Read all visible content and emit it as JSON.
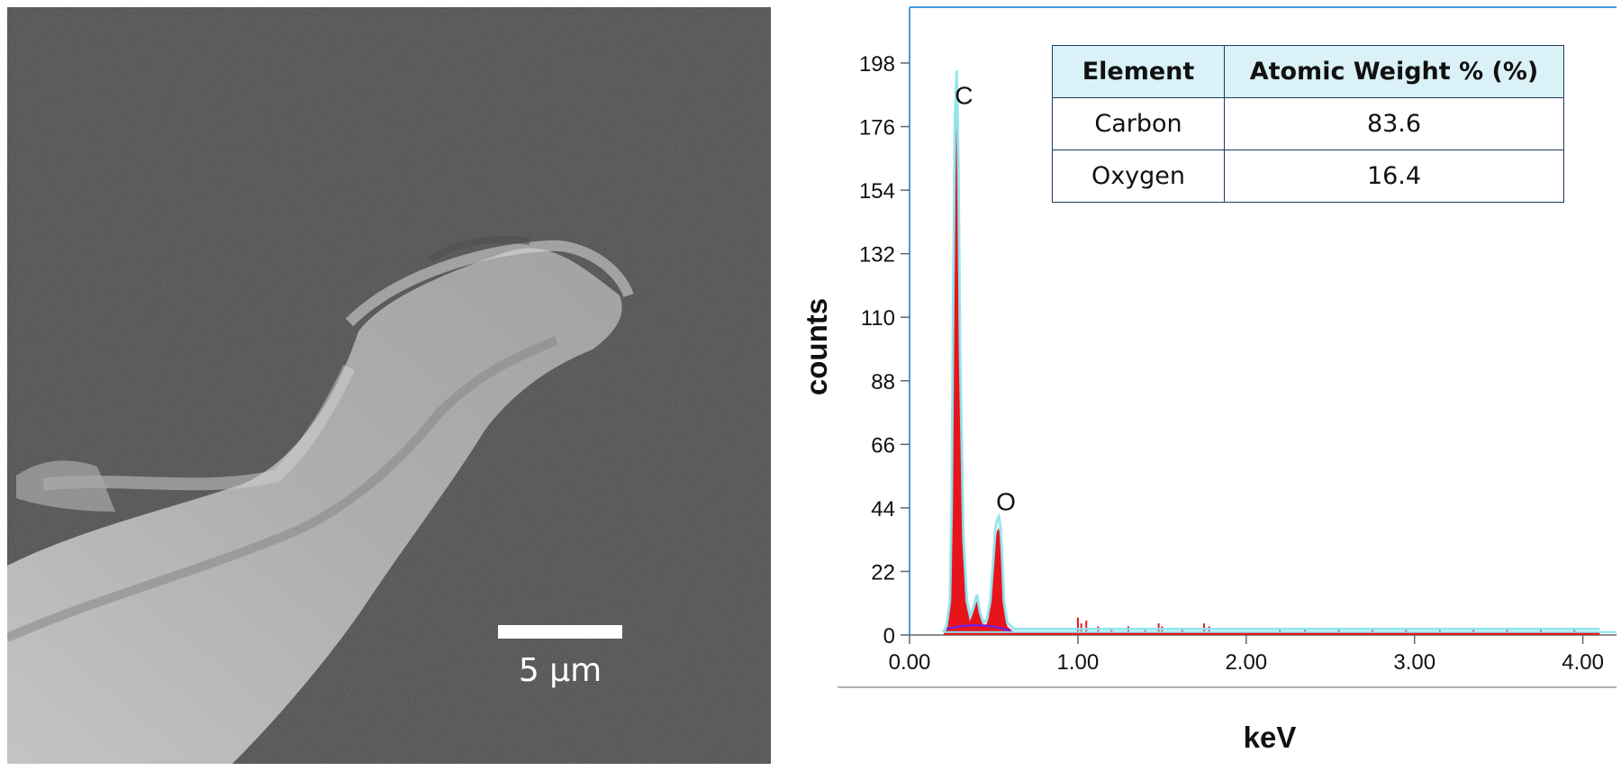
{
  "micrograph": {
    "scale_bar_label": "5 µm"
  },
  "table": {
    "headers": [
      "Element",
      "Atomic Weight % (%)"
    ],
    "rows": [
      [
        "Carbon",
        "83.6"
      ],
      [
        "Oxygen",
        "16.4"
      ]
    ]
  },
  "chart_data": {
    "type": "area",
    "title": "",
    "xlabel": "keV",
    "ylabel": "counts",
    "xlim": [
      0.0,
      4.2
    ],
    "ylim": [
      0,
      198
    ],
    "x_ticks": [
      "0.00",
      "1.00",
      "2.00",
      "3.00",
      "4.00"
    ],
    "y_ticks": [
      "0",
      "22",
      "44",
      "66",
      "88",
      "110",
      "132",
      "154",
      "176",
      "198"
    ],
    "peak_labels": [
      {
        "label": "C",
        "x": 0.28,
        "y": 180
      },
      {
        "label": "O",
        "x": 0.53,
        "y": 37
      }
    ],
    "series": [
      {
        "name": "",
        "x": [
          0.2,
          0.22,
          0.24,
          0.25,
          0.26,
          0.27,
          0.28,
          0.29,
          0.3,
          0.31,
          0.32,
          0.34,
          0.36,
          0.38,
          0.4,
          0.42,
          0.44,
          0.46,
          0.48,
          0.5,
          0.51,
          0.52,
          0.53,
          0.54,
          0.55,
          0.56,
          0.58,
          0.62,
          0.7,
          1.0,
          1.5,
          2.0,
          3.0,
          4.1
        ],
        "values": [
          0,
          2,
          10,
          40,
          110,
          165,
          180,
          150,
          90,
          60,
          30,
          10,
          5,
          8,
          12,
          6,
          3,
          4,
          10,
          25,
          33,
          36,
          37,
          34,
          24,
          10,
          3,
          1,
          1,
          1,
          1,
          1,
          1,
          1
        ]
      }
    ],
    "noise_spikes": [
      {
        "x": 1.0,
        "y": 6
      },
      {
        "x": 1.02,
        "y": 4
      },
      {
        "x": 1.05,
        "y": 5
      },
      {
        "x": 1.12,
        "y": 3
      },
      {
        "x": 1.2,
        "y": 2
      },
      {
        "x": 1.3,
        "y": 3
      },
      {
        "x": 1.4,
        "y": 2
      },
      {
        "x": 1.48,
        "y": 4
      },
      {
        "x": 1.5,
        "y": 3
      },
      {
        "x": 1.62,
        "y": 2
      },
      {
        "x": 1.75,
        "y": 4
      },
      {
        "x": 1.78,
        "y": 3
      },
      {
        "x": 2.2,
        "y": 2
      },
      {
        "x": 2.35,
        "y": 2
      },
      {
        "x": 2.55,
        "y": 2
      },
      {
        "x": 2.75,
        "y": 2
      },
      {
        "x": 2.95,
        "y": 2
      },
      {
        "x": 3.15,
        "y": 2
      },
      {
        "x": 3.35,
        "y": 2
      },
      {
        "x": 3.55,
        "y": 2
      },
      {
        "x": 3.75,
        "y": 2
      },
      {
        "x": 3.95,
        "y": 2
      }
    ],
    "colors": {
      "fill": "#e8141c",
      "envelope": "#8ae3ee",
      "background_line": "#7a1fd6",
      "frame": "#4a9ad9",
      "axis": "#666666"
    },
    "grid": false,
    "legend": "none"
  }
}
